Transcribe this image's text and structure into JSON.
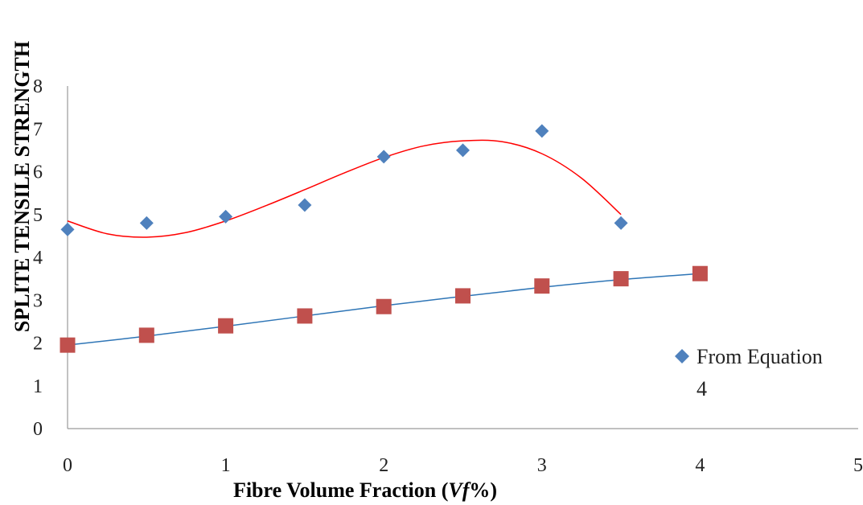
{
  "chart_data": {
    "type": "scatter",
    "title": "",
    "xlabel_parts": [
      "Fibre Volume Fraction (",
      "Vf",
      "%)"
    ],
    "ylabel": "SPLITE TENSILE STRENGTH",
    "xlim": [
      0,
      5
    ],
    "ylim": [
      0,
      8
    ],
    "x_ticks": [
      "0",
      "1",
      "2",
      "3",
      "4",
      "5"
    ],
    "y_ticks": [
      "0",
      "1",
      "2",
      "3",
      "4",
      "5",
      "6",
      "7",
      "8"
    ],
    "grid": false,
    "legend_position": "right",
    "series": [
      {
        "name": "From Equation",
        "marker": "diamond",
        "color": "#4F81BD",
        "x": [
          0,
          0.5,
          1,
          1.5,
          2,
          2.5,
          3,
          3.5
        ],
        "y": [
          4.65,
          4.8,
          4.95,
          5.22,
          6.35,
          6.5,
          6.95,
          4.8
        ],
        "trendline": {
          "type": "polynomial",
          "color": "#FF0000",
          "x": [
            0,
            0.25,
            0.5,
            0.75,
            1,
            1.25,
            1.5,
            1.75,
            2,
            2.25,
            2.5,
            2.75,
            3,
            3.25,
            3.5
          ],
          "y": [
            4.85,
            4.55,
            4.47,
            4.58,
            4.85,
            5.2,
            5.58,
            5.97,
            6.33,
            6.6,
            6.72,
            6.7,
            6.42,
            5.85,
            5.0
          ]
        }
      },
      {
        "name": "4",
        "marker": "square",
        "color": "#C0504D",
        "x": [
          0,
          0.5,
          1,
          1.5,
          2,
          2.5,
          3,
          3.5,
          4
        ],
        "y": [
          1.95,
          2.18,
          2.4,
          2.63,
          2.85,
          3.1,
          3.33,
          3.5,
          3.62
        ],
        "trendline": {
          "type": "polynomial",
          "color": "#2E75B6",
          "x": [
            0,
            0.5,
            1,
            1.5,
            2,
            2.5,
            3,
            3.5,
            4
          ],
          "y": [
            1.95,
            2.16,
            2.39,
            2.63,
            2.87,
            3.09,
            3.3,
            3.48,
            3.62
          ]
        }
      }
    ]
  }
}
